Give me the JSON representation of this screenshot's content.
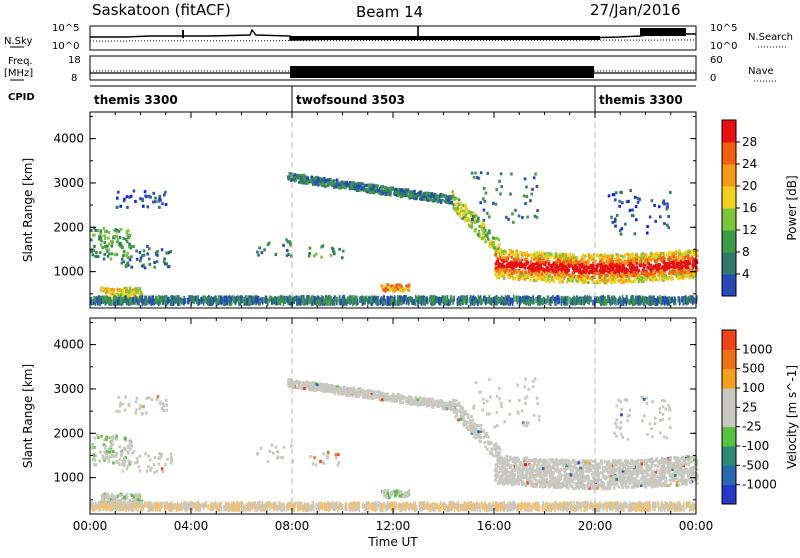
{
  "header": {
    "station": "Saskatoon (fitACF)",
    "beam": "Beam 14",
    "date": "27/Jan/2016"
  },
  "strip_labels": {
    "nsky": "N.Sky",
    "nsky_top": "10^5",
    "nsky_bottom": "10^0",
    "nsearch": "N.Search",
    "nsearch_top": "10^5",
    "nsearch_bottom": "10^0",
    "freq": "Freq.",
    "freq_unit": "[MHz]",
    "freq_top": "18",
    "freq_bottom": "8",
    "nave": "Nave",
    "nave_top": "60",
    "nave_bottom": "0",
    "cpid": "CPID"
  },
  "cpid_segments": [
    {
      "label": "themis 3300",
      "start_h": 0,
      "end_h": 8
    },
    {
      "label": "twofsound 3503",
      "start_h": 8,
      "end_h": 20
    },
    {
      "label": "themis 3300",
      "start_h": 20,
      "end_h": 24
    }
  ],
  "colors": {
    "power_scale": [
      "#1020e0",
      "#2848b8",
      "#2f7a6a",
      "#3f9a48",
      "#7cc43a",
      "#f0d020",
      "#f39a18",
      "#f06010",
      "#e81010"
    ],
    "velocity_scale": [
      "#2538c8",
      "#2a68b0",
      "#2e8a78",
      "#5ac040",
      "#c8c8c0",
      "#c8c8c0",
      "#f4a020",
      "#f07018",
      "#f04418",
      "#e81010"
    ]
  },
  "chart_data": [
    {
      "type": "heatmap",
      "name": "power",
      "ylabel": "Slant Range [km]",
      "xlabel": "",
      "xlim": [
        "00:00",
        "24:00"
      ],
      "ylim": [
        180,
        4600
      ],
      "xticks": [
        "00:00",
        "04:00",
        "08:00",
        "12:00",
        "16:00",
        "20:00",
        "00:00"
      ],
      "yticks": [
        "1000",
        "2000",
        "3000",
        "4000"
      ],
      "colorbar_label": "Power [dB]",
      "colorbar_ticks": [
        "4",
        "8",
        "12",
        "16",
        "20",
        "24",
        "28"
      ],
      "colorbar_range": [
        0,
        30
      ]
    },
    {
      "type": "heatmap",
      "name": "velocity",
      "ylabel": "Slant Range [km]",
      "xlabel": "Time UT",
      "xlim": [
        "00:00",
        "24:00"
      ],
      "ylim": [
        180,
        4600
      ],
      "xticks": [
        "00:00",
        "04:00",
        "08:00",
        "12:00",
        "16:00",
        "20:00",
        "00:00"
      ],
      "yticks": [
        "1000",
        "2000",
        "3000",
        "4000"
      ],
      "colorbar_label": "Velocity [m s^-1]",
      "colorbar_ticks": [
        "1000",
        "500",
        "100",
        "25",
        "-25",
        "-100",
        "-500",
        "-1000"
      ]
    }
  ]
}
